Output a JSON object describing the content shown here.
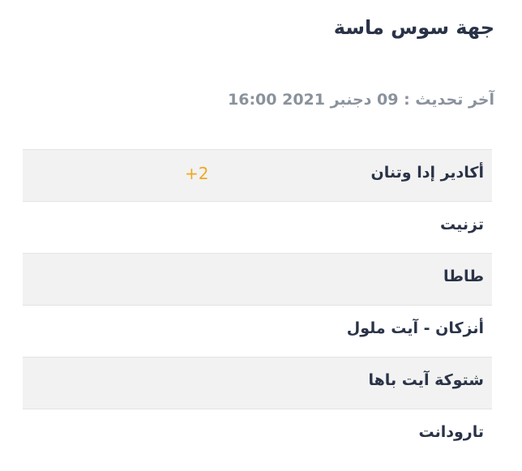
{
  "title": "جهة سوس ماسة",
  "last_update": "آخر تحديث : 09 دجنبر 2021 16:00",
  "rows": [
    {
      "name": "أكادير إدا وتنان",
      "badge": "+2"
    },
    {
      "name": "تزنيت"
    },
    {
      "name": "طاطا"
    },
    {
      "name": "أنزكان - آيت ملول"
    },
    {
      "name": "شتوكة آيت باها"
    },
    {
      "name": "تارودانت"
    }
  ],
  "colors": {
    "badge": "#f0a820",
    "text": "#2a3347",
    "muted": "#8a929c"
  }
}
